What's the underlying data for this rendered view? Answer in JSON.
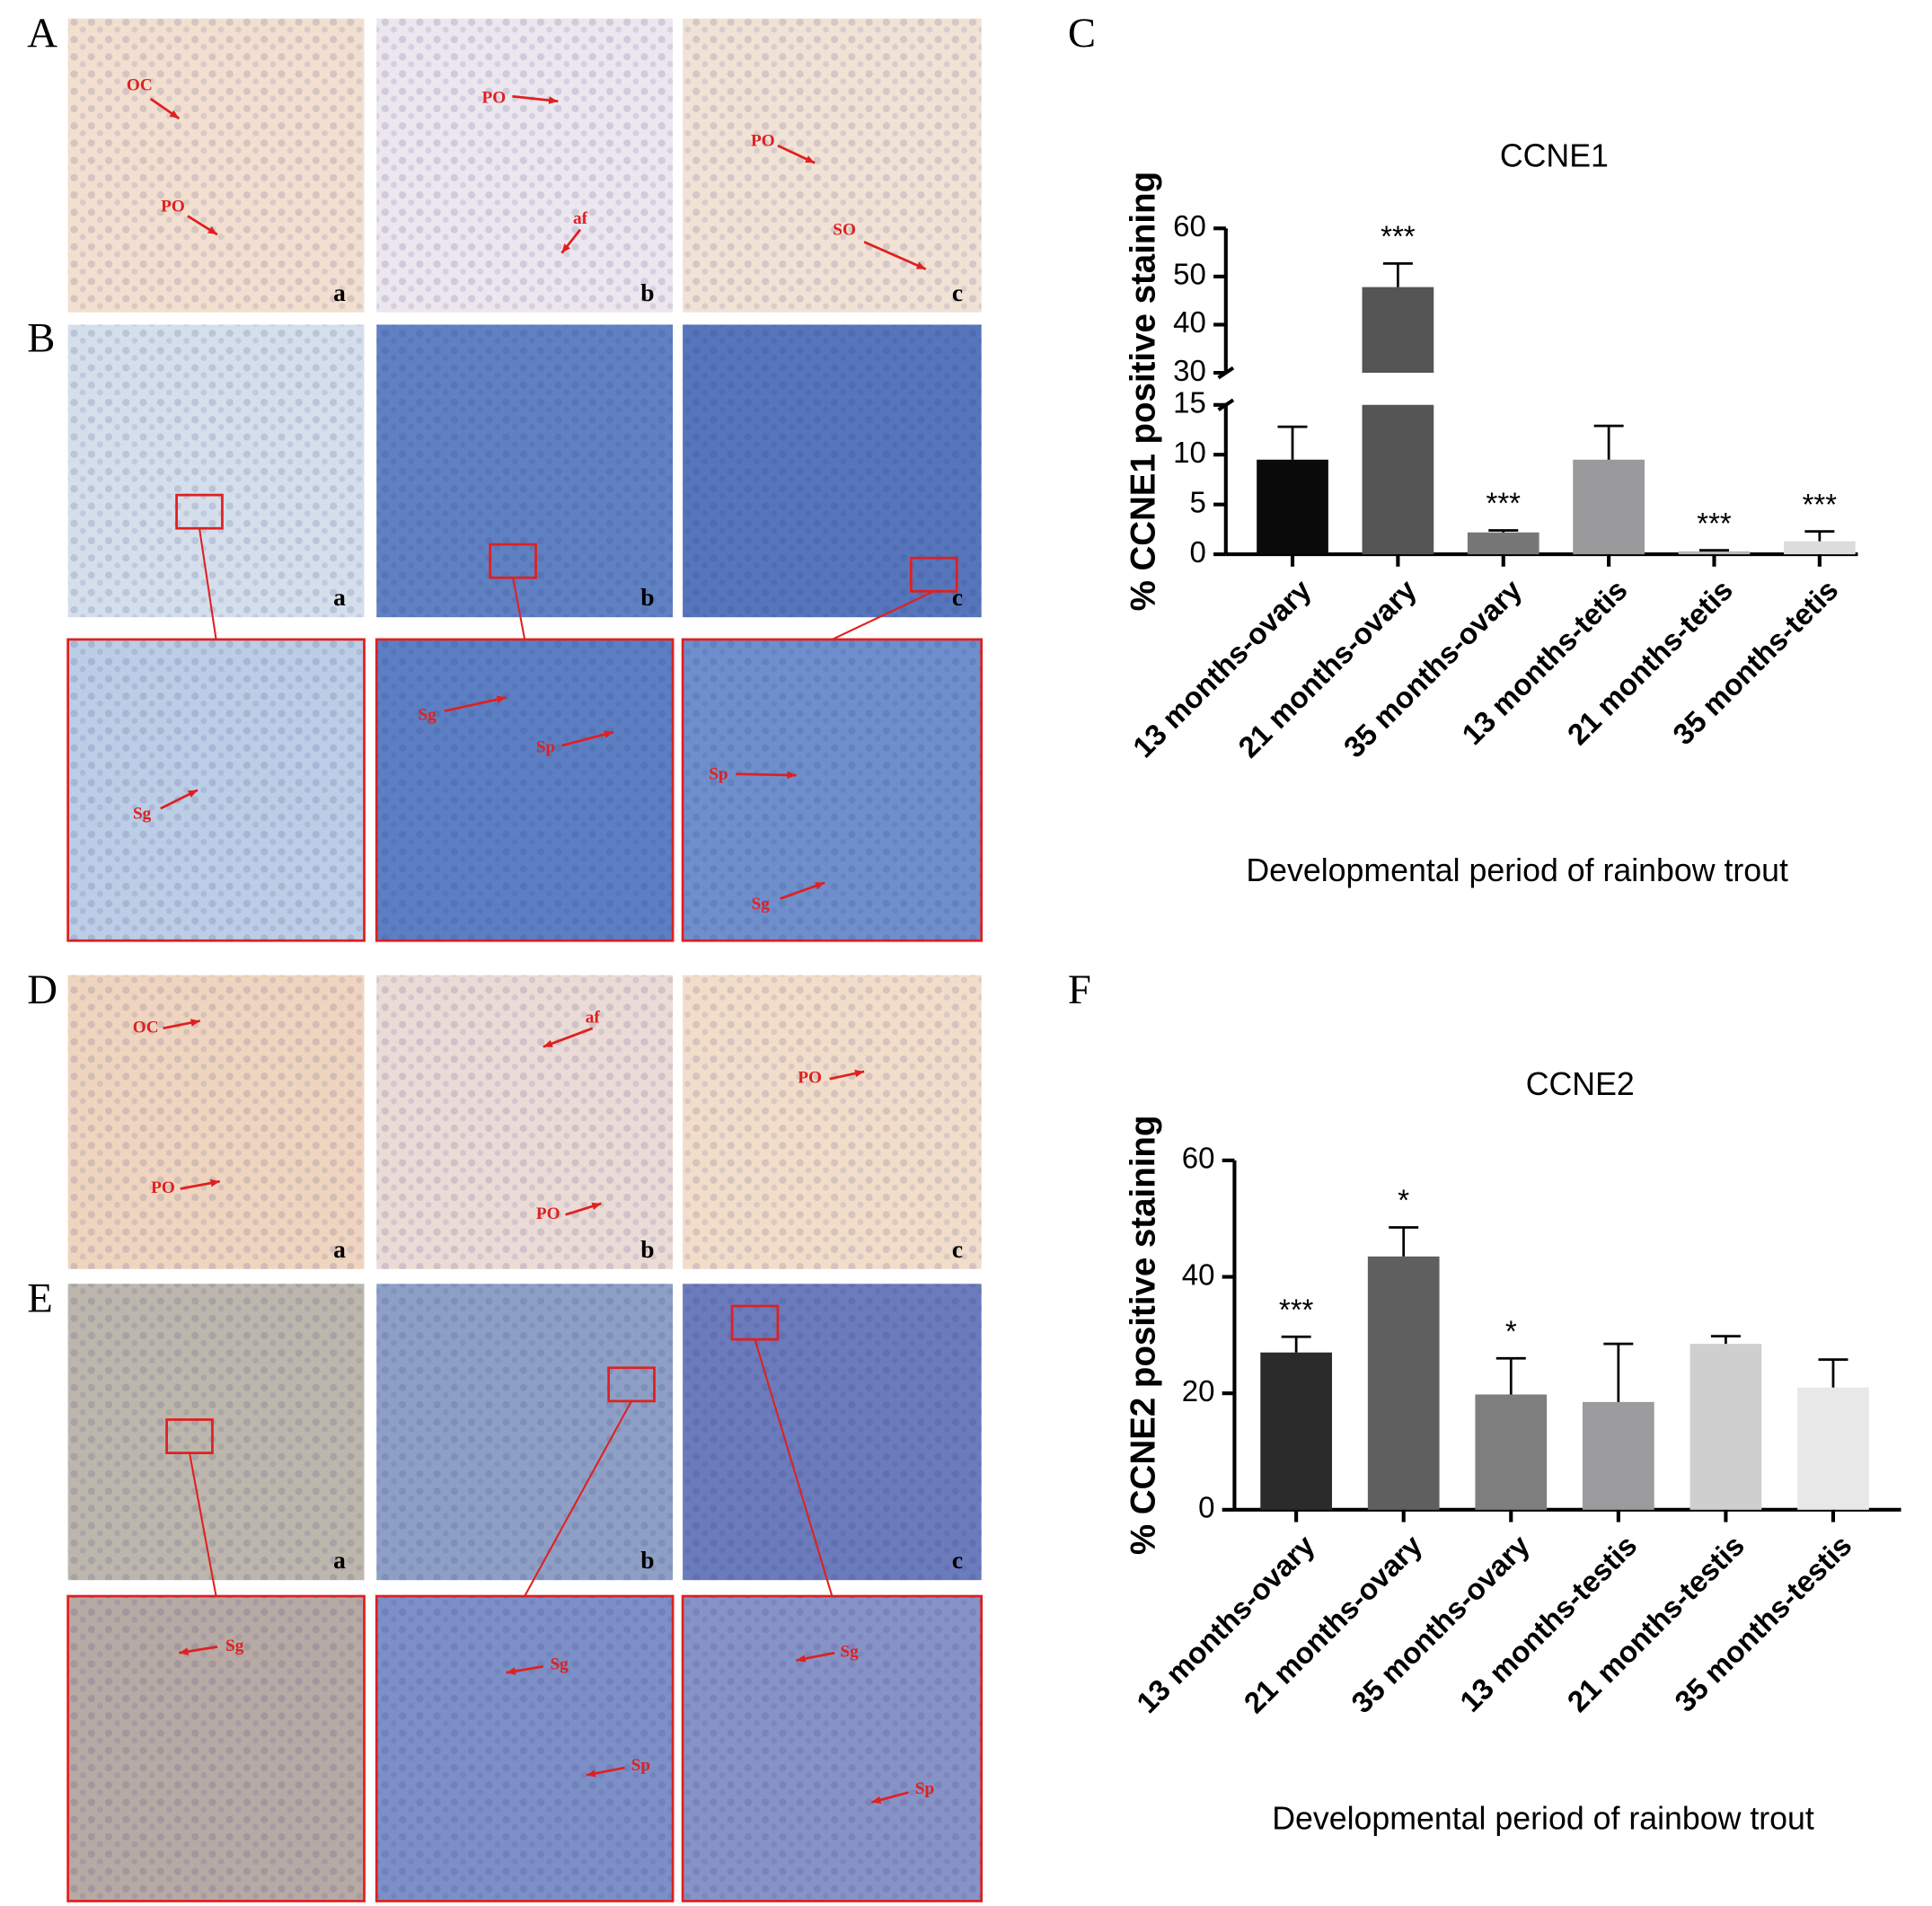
{
  "chart_data": [
    {
      "type": "bar",
      "title": "CCNE1",
      "y_label": "% CCNE1 positive staining",
      "x_label": "Developmental period of rainbow trout",
      "categories": [
        "13 months-ovary",
        "21 months-ovary",
        "35 months-ovary",
        "13 months-tetis",
        "21 months-tetis",
        "35 months-tetis"
      ],
      "values": [
        9.5,
        47.8,
        2.2,
        9.5,
        0.3,
        1.3
      ],
      "errors": [
        3.3,
        4.9,
        0.2,
        3.4,
        0.1,
        1.0
      ],
      "colors": [
        "#0a0a0a",
        "#555555",
        "#777777",
        "#9a9a9c",
        "#b9b9b9",
        "#dcdcdc"
      ],
      "significance": [
        null,
        "***",
        "***",
        null,
        "***",
        "***"
      ],
      "ylim": [
        0,
        60
      ],
      "yticks": [
        0,
        5,
        10,
        15,
        30,
        40,
        50,
        60
      ],
      "y_break": [
        15,
        30
      ]
    },
    {
      "type": "bar",
      "title": "CCNE2",
      "y_label": "% CCNE2 positive staining",
      "x_label": "Developmental period of rainbow trout",
      "categories": [
        "13 months-ovary",
        "21 months-ovary",
        "35 months-ovary",
        "13 months-testis",
        "21 months-testis",
        "35 months-testis"
      ],
      "values": [
        27,
        43.5,
        19.8,
        18.5,
        28.5,
        21
      ],
      "errors": [
        2.7,
        5,
        6.2,
        10,
        1.3,
        4.8
      ],
      "colors": [
        "#2b2b2b",
        "#5f5f5f",
        "#7e7e7e",
        "#9b9b9d",
        "#cfcfcf",
        "#e8e8e8"
      ],
      "significance": [
        "***",
        "*",
        "*",
        null,
        null,
        null
      ],
      "ylim": [
        0,
        60
      ],
      "yticks": [
        0,
        20,
        40,
        60
      ]
    }
  ],
  "panel_labels": [
    "A",
    "B",
    "C",
    "D",
    "E",
    "F"
  ],
  "sub_labels": [
    "a",
    "b",
    "c"
  ],
  "annotations": [
    "OC",
    "PO",
    "PO",
    "af",
    "PO",
    "SO",
    "Sg",
    "Sg",
    "Sp",
    "Sp",
    "Sg",
    "OC",
    "PO",
    "af",
    "PO",
    "PO",
    "Sg",
    "Sg",
    "Sp",
    "Sg",
    "Sp"
  ]
}
